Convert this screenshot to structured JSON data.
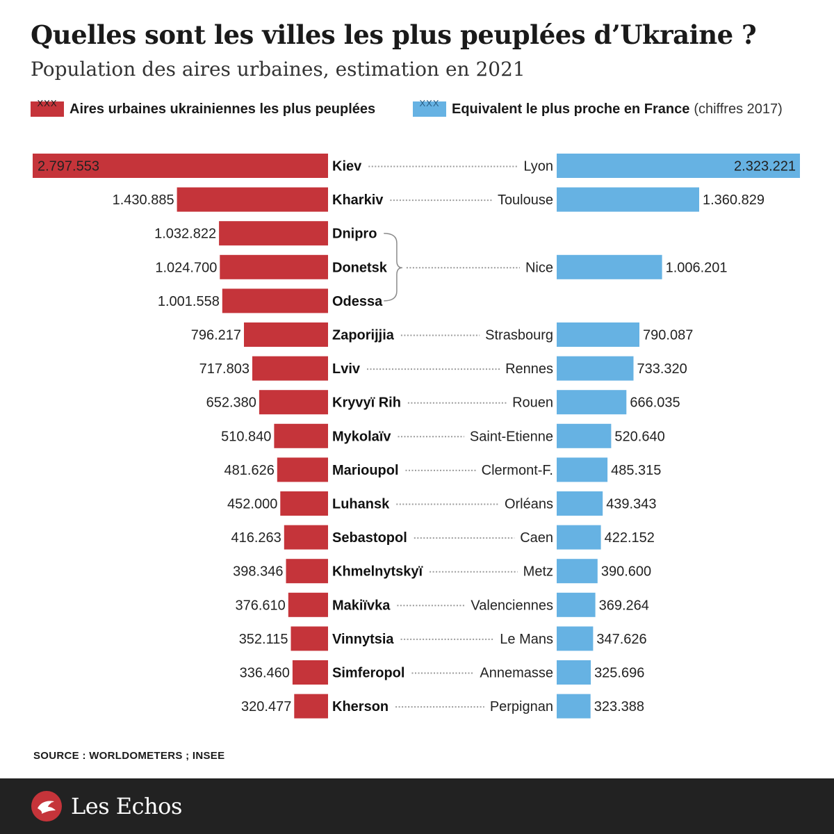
{
  "header": {
    "title": "Quelles sont les villes les plus peuplées d’Ukraine ?",
    "subtitle": "Population des aires urbaines, estimation en 2021"
  },
  "legend": {
    "left": {
      "swatch_text": "XXX",
      "label": "Aires urbaines ukrainiennes les plus peuplées",
      "color": "#c5343a"
    },
    "right": {
      "swatch_text": "XXX",
      "label": "Equivalent le plus proche en France",
      "note": "(chiffres 2017)",
      "color": "#66b2e3"
    }
  },
  "chart_data": {
    "type": "bar",
    "orientation": "horizontal-butterfly",
    "series": [
      {
        "name": "Aires urbaines ukrainiennes les plus peuplées",
        "color": "#c5343a"
      },
      {
        "name": "Equivalent le plus proche en France",
        "color": "#66b2e3"
      }
    ],
    "ukraine": [
      {
        "city": "Kiev",
        "value": 2797553,
        "label": "2.797.553"
      },
      {
        "city": "Kharkiv",
        "value": 1430885,
        "label": "1.430.885"
      },
      {
        "city": "Dnipro",
        "value": 1032822,
        "label": "1.032.822"
      },
      {
        "city": "Donetsk",
        "value": 1024700,
        "label": "1.024.700"
      },
      {
        "city": "Odessa",
        "value": 1001558,
        "label": "1.001.558"
      },
      {
        "city": "Zaporijjia",
        "value": 796217,
        "label": "796.217"
      },
      {
        "city": "Lviv",
        "value": 717803,
        "label": "717.803"
      },
      {
        "city": "Kryvyï Rih",
        "value": 652380,
        "label": "652.380"
      },
      {
        "city": "Mykolaïv",
        "value": 510840,
        "label": "510.840"
      },
      {
        "city": "Marioupol",
        "value": 481626,
        "label": "481.626"
      },
      {
        "city": "Luhansk",
        "value": 452000,
        "label": "452.000"
      },
      {
        "city": "Sebastopol",
        "value": 416263,
        "label": "416.263"
      },
      {
        "city": "Khmelnytskyï",
        "value": 398346,
        "label": "398.346"
      },
      {
        "city": "Makiïvka",
        "value": 376610,
        "label": "376.610"
      },
      {
        "city": "Vinnytsia",
        "value": 352115,
        "label": "352.115"
      },
      {
        "city": "Simferopol",
        "value": 336460,
        "label": "336.460"
      },
      {
        "city": "Kherson",
        "value": 320477,
        "label": "320.477"
      }
    ],
    "france": [
      {
        "city": "Lyon",
        "value": 2323221,
        "label": "2.323.221",
        "ua_index": 0
      },
      {
        "city": "Toulouse",
        "value": 1360829,
        "label": "1.360.829",
        "ua_index": 1
      },
      {
        "city": "Nice",
        "value": 1006201,
        "label": "1.006.201",
        "ua_index": 3,
        "group": [
          2,
          4
        ]
      },
      {
        "city": "Strasbourg",
        "value": 790087,
        "label": "790.087",
        "ua_index": 5
      },
      {
        "city": "Rennes",
        "value": 733320,
        "label": "733.320",
        "ua_index": 6
      },
      {
        "city": "Rouen",
        "value": 666035,
        "label": "666.035",
        "ua_index": 7
      },
      {
        "city": "Saint-Etienne",
        "value": 520640,
        "label": "520.640",
        "ua_index": 8
      },
      {
        "city": "Clermont-F.",
        "value": 485315,
        "label": "485.315",
        "ua_index": 9
      },
      {
        "city": "Orléans",
        "value": 439343,
        "label": "439.343",
        "ua_index": 10
      },
      {
        "city": "Caen",
        "value": 422152,
        "label": "422.152",
        "ua_index": 11
      },
      {
        "city": "Metz",
        "value": 390600,
        "label": "390.600",
        "ua_index": 12
      },
      {
        "city": "Valenciennes",
        "value": 369264,
        "label": "369.264",
        "ua_index": 13
      },
      {
        "city": "Le Mans",
        "value": 347626,
        "label": "347.626",
        "ua_index": 14
      },
      {
        "city": "Annemasse",
        "value": 325696,
        "label": "325.696",
        "ua_index": 15
      },
      {
        "city": "Perpignan",
        "value": 323388,
        "label": "323.388",
        "ua_index": 16
      }
    ]
  },
  "source": "SOURCE : WORLDOMETERS ; INSEE",
  "footer": {
    "brand": "Les Echos",
    "background": "#222222"
  }
}
